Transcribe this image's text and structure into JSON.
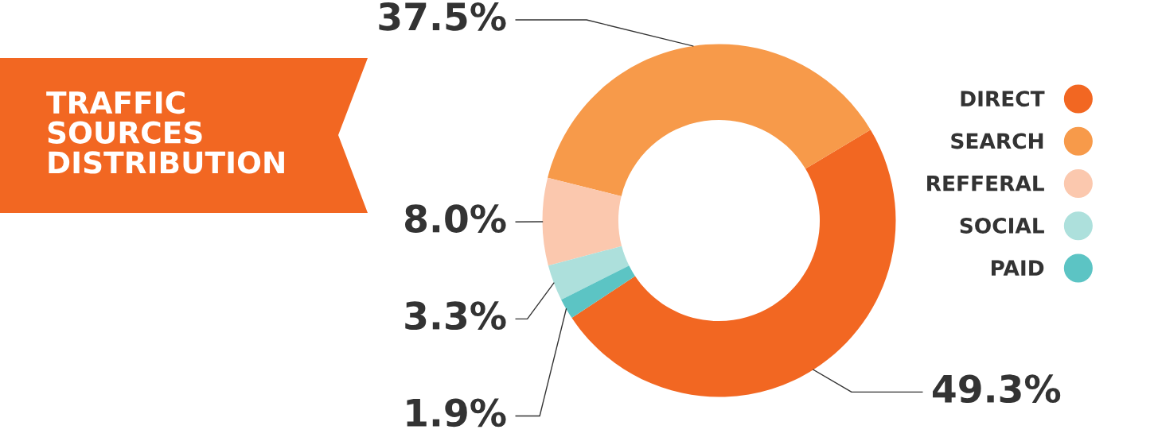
{
  "chart_data": {
    "type": "donut",
    "title": "TRAFFIC\nSOURCES\nDISTRIBUTION",
    "categories": [
      "DIRECT",
      "SEARCH",
      "REFFERAL",
      "SOCIAL",
      "PAID"
    ],
    "values": [
      49.3,
      37.5,
      8.0,
      3.3,
      1.9
    ],
    "colors": [
      "#f26722",
      "#f79a4a",
      "#fbc8ae",
      "#ade0dc",
      "#5cc4c4"
    ],
    "value_labels": [
      "49.3%",
      "37.5%",
      "8.0%",
      "3.3%",
      "1.9%"
    ],
    "legend": "right"
  }
}
